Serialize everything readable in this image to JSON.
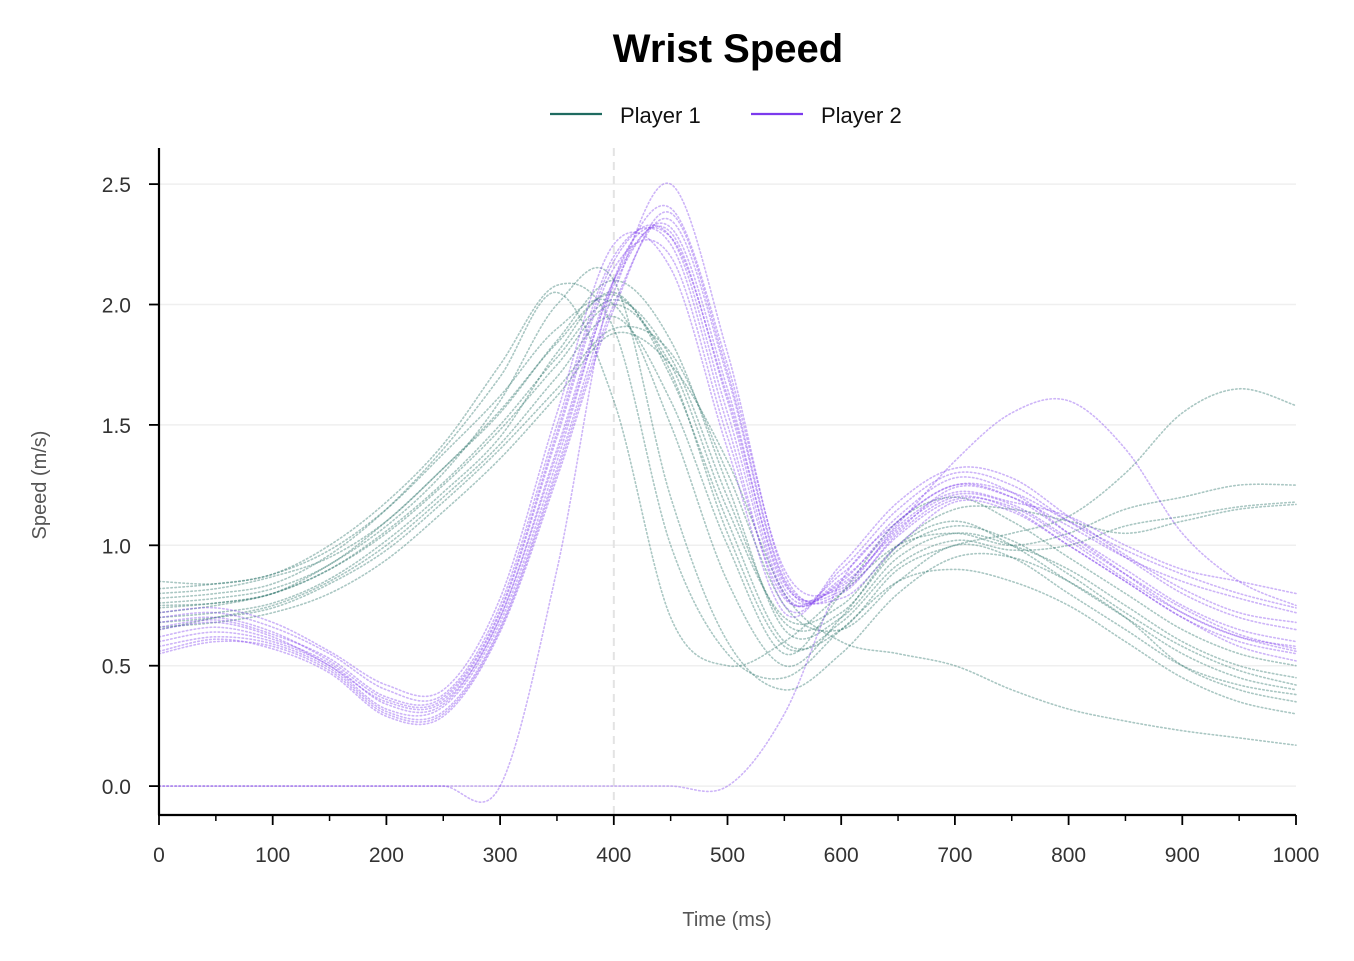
{
  "chart_data": {
    "type": "line",
    "title": "Wrist Speed",
    "xlabel": "Time (ms)",
    "ylabel": "Speed (m/s)",
    "xlim": [
      0,
      1000
    ],
    "ylim": [
      -0.12,
      2.65
    ],
    "x_ticks": [
      0,
      100,
      200,
      300,
      400,
      500,
      600,
      700,
      800,
      900,
      1000
    ],
    "x_tick_labels": [
      "0",
      "100",
      "200",
      "300",
      "400",
      "500",
      "600",
      "700",
      "800",
      "900",
      "1000"
    ],
    "y_ticks": [
      0.0,
      0.5,
      1.0,
      1.5,
      2.0,
      2.5
    ],
    "y_tick_labels": [
      "0.0",
      "0.5",
      "1.0",
      "1.5",
      "2.0",
      "2.5"
    ],
    "grid": "horizontal",
    "legend_position": "top-center",
    "reference_line_x": 400,
    "x": [
      0,
      50,
      100,
      150,
      200,
      250,
      300,
      350,
      400,
      450,
      500,
      550,
      600,
      650,
      700,
      750,
      800,
      850,
      900,
      950,
      1000
    ],
    "series": [
      {
        "name": "Player 1",
        "color": "#1f6b60",
        "trials": [
          [
            0.72,
            0.75,
            0.8,
            0.9,
            1.05,
            1.25,
            1.48,
            1.75,
            2.0,
            1.75,
            1.15,
            0.7,
            0.75,
            1.0,
            1.1,
            1.0,
            0.85,
            0.7,
            0.55,
            0.45,
            0.4
          ],
          [
            0.8,
            0.82,
            0.87,
            0.95,
            1.1,
            1.32,
            1.55,
            1.85,
            2.1,
            1.85,
            1.25,
            0.65,
            0.7,
            0.95,
            1.05,
            1.0,
            0.9,
            0.75,
            0.6,
            0.5,
            0.45
          ],
          [
            0.65,
            0.7,
            0.75,
            0.85,
            1.0,
            1.2,
            1.42,
            1.7,
            1.95,
            1.6,
            1.0,
            0.55,
            0.8,
            1.1,
            1.2,
            1.1,
            0.95,
            0.8,
            0.65,
            0.55,
            0.5
          ],
          [
            0.85,
            0.84,
            0.88,
            0.98,
            1.15,
            1.38,
            1.62,
            1.9,
            2.0,
            1.5,
            0.85,
            0.5,
            0.7,
            1.0,
            1.15,
            1.15,
            1.1,
            1.05,
            1.1,
            1.15,
            1.17
          ],
          [
            0.7,
            0.72,
            0.76,
            0.86,
            1.02,
            1.22,
            1.45,
            1.8,
            2.05,
            1.7,
            1.1,
            0.6,
            0.65,
            0.9,
            1.0,
            1.05,
            1.12,
            1.3,
            1.55,
            1.65,
            1.58
          ],
          [
            0.75,
            0.76,
            0.8,
            0.92,
            1.08,
            1.3,
            1.6,
            2.0,
            2.1,
            1.2,
            0.6,
            0.4,
            0.55,
            0.8,
            0.95,
            0.95,
            0.85,
            0.7,
            0.5,
            0.4,
            0.35
          ],
          [
            0.68,
            0.7,
            0.74,
            0.84,
            0.98,
            1.18,
            1.4,
            1.65,
            1.9,
            1.8,
            1.3,
            0.75,
            0.65,
            0.85,
            1.0,
            0.95,
            0.8,
            0.65,
            0.5,
            0.42,
            0.38
          ],
          [
            0.78,
            0.8,
            0.84,
            0.96,
            1.15,
            1.4,
            1.7,
            2.05,
            1.6,
            0.7,
            0.5,
            0.6,
            0.8,
            1.0,
            1.05,
            1.0,
            1.05,
            1.15,
            1.2,
            1.25,
            1.25
          ],
          [
            0.74,
            0.76,
            0.8,
            0.9,
            1.06,
            1.26,
            1.5,
            1.78,
            2.02,
            1.78,
            1.2,
            0.68,
            0.72,
            0.98,
            1.08,
            1.02,
            0.88,
            0.72,
            0.58,
            0.48,
            0.42
          ],
          [
            0.82,
            0.84,
            0.88,
            1.0,
            1.18,
            1.42,
            1.75,
            2.08,
            1.9,
            1.0,
            0.55,
            0.45,
            0.65,
            0.85,
            0.9,
            0.85,
            0.75,
            0.6,
            0.45,
            0.35,
            0.3
          ],
          [
            0.66,
            0.68,
            0.72,
            0.8,
            0.94,
            1.14,
            1.36,
            1.62,
            1.88,
            1.75,
            1.35,
            0.8,
            0.6,
            0.55,
            0.5,
            0.4,
            0.32,
            0.27,
            0.23,
            0.2,
            0.17
          ],
          [
            0.76,
            0.78,
            0.82,
            0.92,
            1.1,
            1.32,
            1.56,
            1.84,
            2.04,
            1.72,
            1.05,
            0.58,
            0.68,
            0.92,
            1.02,
            0.98,
            1.0,
            1.08,
            1.12,
            1.16,
            1.18
          ]
        ]
      },
      {
        "name": "Player 2",
        "color": "#7c3aed",
        "trials": [
          [
            0.65,
            0.68,
            0.62,
            0.5,
            0.35,
            0.35,
            0.7,
            1.4,
            2.1,
            2.3,
            1.6,
            0.8,
            0.85,
            1.1,
            1.25,
            1.2,
            1.05,
            0.9,
            0.75,
            0.65,
            0.6
          ],
          [
            0.55,
            0.6,
            0.58,
            0.48,
            0.3,
            0.3,
            0.65,
            1.3,
            2.0,
            2.35,
            1.7,
            0.85,
            0.8,
            1.05,
            1.2,
            1.15,
            1.0,
            0.85,
            0.7,
            0.6,
            0.55
          ],
          [
            0.7,
            0.72,
            0.66,
            0.55,
            0.4,
            0.38,
            0.75,
            1.5,
            2.2,
            2.25,
            1.5,
            0.75,
            0.9,
            1.15,
            1.3,
            1.25,
            1.1,
            0.95,
            0.8,
            0.7,
            0.65
          ],
          [
            0.6,
            0.64,
            0.6,
            0.5,
            0.32,
            0.33,
            0.68,
            1.35,
            2.1,
            2.4,
            1.75,
            0.9,
            0.82,
            1.08,
            1.22,
            1.18,
            1.12,
            1.0,
            0.9,
            0.85,
            0.8
          ],
          [
            0.68,
            0.7,
            0.64,
            0.52,
            0.36,
            0.36,
            0.72,
            1.45,
            2.15,
            2.2,
            1.45,
            0.78,
            0.88,
            1.12,
            1.28,
            1.22,
            1.05,
            0.88,
            0.72,
            0.62,
            0.58
          ],
          [
            0.58,
            0.62,
            0.59,
            0.49,
            0.31,
            0.31,
            0.66,
            1.32,
            2.05,
            2.5,
            1.8,
            0.88,
            0.78,
            1.0,
            1.18,
            1.14,
            1.0,
            0.85,
            0.7,
            0.58,
            0.52
          ],
          [
            0.72,
            0.74,
            0.68,
            0.56,
            0.42,
            0.4,
            0.78,
            1.55,
            2.25,
            2.15,
            1.4,
            0.72,
            0.92,
            1.18,
            1.32,
            1.28,
            1.12,
            0.96,
            0.82,
            0.72,
            0.68
          ],
          [
            0.62,
            0.66,
            0.61,
            0.51,
            0.34,
            0.34,
            0.7,
            1.38,
            2.08,
            2.32,
            1.65,
            0.82,
            0.84,
            1.06,
            1.24,
            1.2,
            1.08,
            0.95,
            0.85,
            0.78,
            0.72
          ],
          [
            0.66,
            0.69,
            0.63,
            0.53,
            0.37,
            0.37,
            0.73,
            1.47,
            2.18,
            2.28,
            1.55,
            0.79,
            0.86,
            1.09,
            1.35,
            1.55,
            1.6,
            1.4,
            1.05,
            0.85,
            0.75
          ],
          [
            0.56,
            0.61,
            0.57,
            0.47,
            0.29,
            0.29,
            0.64,
            1.28,
            1.98,
            2.38,
            1.72,
            0.86,
            0.81,
            1.04,
            1.19,
            1.16,
            1.02,
            0.86,
            0.72,
            0.62,
            0.56
          ],
          [
            0.0,
            0.0,
            0.0,
            0.0,
            0.0,
            0.0,
            0.0,
            0.9,
            2.1,
            2.28,
            1.62,
            0.84,
            0.83,
            1.07,
            1.21,
            1.17,
            1.03,
            0.88,
            0.74,
            0.63,
            0.57
          ],
          [
            0.0,
            0.0,
            0.0,
            0.0,
            0.0,
            0.0,
            0.0,
            0.0,
            0.0,
            0.0,
            0.0,
            0.3,
            0.85,
            1.1,
            1.25,
            1.22,
            1.1,
            0.98,
            0.88,
            0.8,
            0.74
          ]
        ]
      }
    ]
  }
}
